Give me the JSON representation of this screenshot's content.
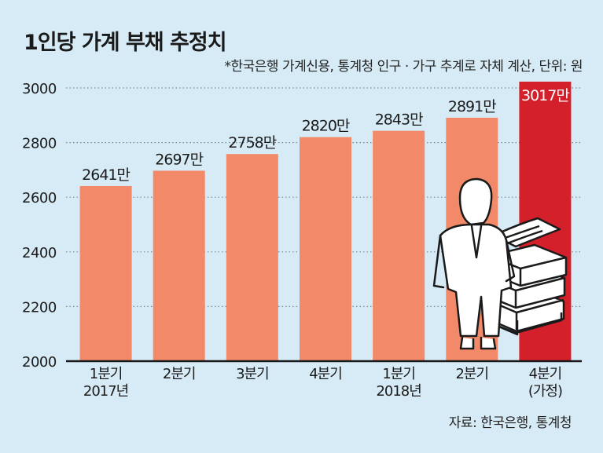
{
  "title": "1인당 가계 부채 추정치",
  "subtitle": "*한국은행 가계신용, 통계청 인구 · 가구 추계로 자체 계산,  단위: 원",
  "source": "자료: 한국은행, 통계청",
  "colors": {
    "bar": "#f28a6a",
    "highlight": "#d4202a",
    "background": "#d7ebf6",
    "grid": "#7a8a94"
  },
  "chart_data": {
    "type": "bar",
    "categories": [
      [
        "1분기",
        "2017년"
      ],
      [
        "2분기"
      ],
      [
        "3분기"
      ],
      [
        "4분기"
      ],
      [
        "1분기",
        "2018년"
      ],
      [
        "2분기"
      ],
      [
        "4분기",
        "(가정)"
      ]
    ],
    "values": [
      2641,
      2697,
      2758,
      2820,
      2843,
      2891,
      3017
    ],
    "value_labels": [
      "2641만",
      "2697만",
      "2758만",
      "2820만",
      "2843만",
      "2891만",
      "3017만"
    ],
    "highlight_index": 6,
    "ylim": [
      2000,
      3000
    ],
    "yticks": [
      "2000",
      "2200",
      "2400",
      "2600",
      "2800",
      "3000"
    ],
    "grid": "dotted horizontal"
  }
}
